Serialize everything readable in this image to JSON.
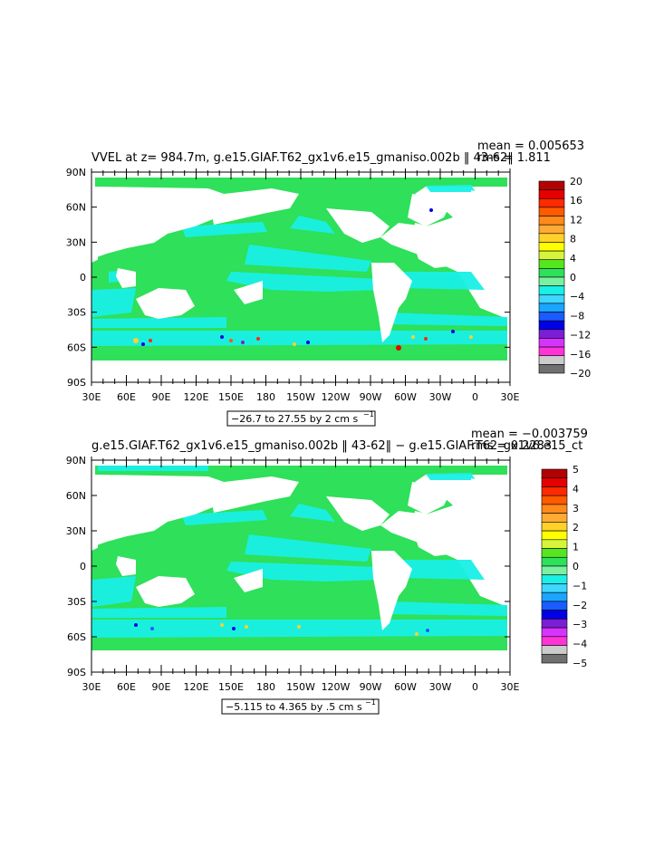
{
  "colors": {
    "ocean_green": "#2ee05a",
    "ocean_cyan": "#19f0e6",
    "land": "#ffffff",
    "frame": "#000000"
  },
  "panels": [
    {
      "title": "VVEL at z= 984.7m, g.e15.GIAF.T62_gx1v6.e15_gmaniso.002b ‖ 43-62‖",
      "mean_text": "mean = 0.005653",
      "rms_text": "rms = 1.811",
      "range_text": "−26.7 to 27.55 by 2 cm s",
      "range_exp": "−1",
      "lat_labels": [
        "90N",
        "60N",
        "30N",
        "0",
        "30S",
        "60S",
        "90S"
      ],
      "lon_labels": [
        "30E",
        "60E",
        "90E",
        "120E",
        "150E",
        "180",
        "150W",
        "120W",
        "90W",
        "60W",
        "30W",
        "0",
        "30E"
      ],
      "colorbar": {
        "labels": [
          "20",
          "16",
          "12",
          "8",
          "4",
          "0",
          "−4",
          "−8",
          "−12",
          "−16",
          "−20"
        ],
        "colors": [
          "#b30000",
          "#e50000",
          "#ff2a00",
          "#ff5a00",
          "#ff8a1a",
          "#ffaa33",
          "#ffd12a",
          "#ffff00",
          "#d6f53a",
          "#55e61e",
          "#2ee05a",
          "#7af0a0",
          "#19f0e6",
          "#3fd6ff",
          "#1aa6ff",
          "#1a5cff",
          "#0000e6",
          "#7b1fd6",
          "#d633ff",
          "#ff33d6",
          "#cccccc",
          "#707070"
        ]
      }
    },
    {
      "title": "g.e15.GIAF.T62_gx1v6.e15_gmaniso.002b ‖ 43-62‖ − g.e15.GIAF.T62_gx1v6.e15_ct",
      "mean_text": "mean = −0.003759",
      "rms_text": "rms = 0.2283",
      "range_text": "−5.115 to 4.365 by .5 cm s",
      "range_exp": "−1",
      "lat_labels": [
        "90N",
        "60N",
        "30N",
        "0",
        "30S",
        "60S",
        "90S"
      ],
      "lon_labels": [
        "30E",
        "60E",
        "90E",
        "120E",
        "150E",
        "180",
        "150W",
        "120W",
        "90W",
        "60W",
        "30W",
        "0",
        "30E"
      ],
      "colorbar": {
        "labels": [
          "5",
          "4",
          "3",
          "2",
          "1",
          "0",
          "−1",
          "−2",
          "−3",
          "−4",
          "−5"
        ],
        "colors": [
          "#b30000",
          "#e50000",
          "#ff2a00",
          "#ff5a00",
          "#ff8a1a",
          "#ffaa33",
          "#ffd12a",
          "#ffff00",
          "#d6f53a",
          "#55e61e",
          "#2ee05a",
          "#7af0a0",
          "#19f0e6",
          "#3fd6ff",
          "#1aa6ff",
          "#1a5cff",
          "#0000e6",
          "#7b1fd6",
          "#d633ff",
          "#ff33d6",
          "#cccccc",
          "#707070"
        ]
      }
    }
  ]
}
